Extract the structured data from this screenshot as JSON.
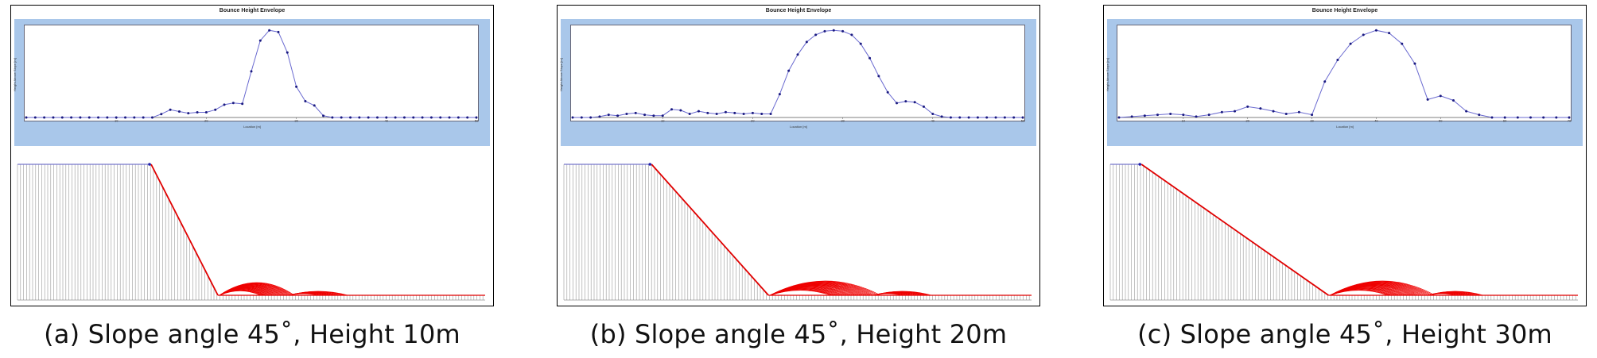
{
  "chart_data": [
    {
      "type": "line",
      "title": "Bounce Height Envelope",
      "xlabel": "Location [m]",
      "ylabel": "Height Above Slope [m]",
      "xlim": [
        0,
        50
      ],
      "x_ticks": [
        "10",
        "20",
        "30",
        "40",
        "50"
      ],
      "x": [
        0,
        1,
        2,
        3,
        4,
        5,
        6,
        7,
        8,
        9,
        10,
        11,
        12,
        13,
        14,
        15,
        16,
        17,
        18,
        19,
        20,
        21,
        22,
        23,
        24,
        25,
        26,
        27,
        28,
        29,
        30,
        31,
        32,
        33,
        34,
        35,
        36,
        37,
        38,
        39,
        40,
        41,
        42,
        43,
        44,
        45,
        46,
        47,
        48,
        49,
        50
      ],
      "series": [
        {
          "values": [
            0,
            0,
            0,
            0,
            0,
            0,
            0,
            0,
            0,
            0,
            0,
            0,
            0,
            0,
            0,
            0.2,
            0.45,
            0.35,
            0.25,
            0.3,
            0.3,
            0.45,
            0.75,
            0.85,
            0.8,
            2.7,
            4.5,
            5.1,
            5.0,
            3.8,
            1.8,
            0.95,
            0.7,
            0.1,
            0,
            0,
            0,
            0,
            0,
            0,
            0,
            0,
            0,
            0,
            0,
            0,
            0,
            0,
            0,
            0,
            0
          ]
        }
      ],
      "color": "#4444aa",
      "caption": "(a) Slope angle 45˚, Height 10m",
      "terrain": {
        "bench_length": 20,
        "slope_height": 10,
        "runout_length": 40
      }
    },
    {
      "type": "line",
      "title": "Bounce Height Envelope",
      "xlabel": "Location [m]",
      "ylabel": "Height Above Slope [m]",
      "xlim": [
        0,
        50
      ],
      "x_ticks": [
        "10",
        "20",
        "30",
        "40",
        "50"
      ],
      "x": [
        0,
        1,
        2,
        3,
        4,
        5,
        6,
        7,
        8,
        9,
        10,
        11,
        12,
        13,
        14,
        15,
        16,
        17,
        18,
        19,
        20,
        21,
        22,
        23,
        24,
        25,
        26,
        27,
        28,
        29,
        30,
        31,
        32,
        33,
        34,
        35,
        36,
        37,
        38,
        39,
        40,
        41,
        42,
        43,
        44,
        45,
        46,
        47,
        48,
        49,
        50
      ],
      "series": [
        {
          "values": [
            0,
            0,
            0,
            0.05,
            0.15,
            0.1,
            0.2,
            0.25,
            0.15,
            0.1,
            0.1,
            0.45,
            0.4,
            0.2,
            0.35,
            0.25,
            0.2,
            0.3,
            0.25,
            0.2,
            0.25,
            0.2,
            0.2,
            1.3,
            2.6,
            3.5,
            4.2,
            4.6,
            4.8,
            4.85,
            4.8,
            4.6,
            4.1,
            3.3,
            2.3,
            1.4,
            0.8,
            0.9,
            0.85,
            0.6,
            0.2,
            0.05,
            0,
            0,
            0,
            0,
            0,
            0,
            0,
            0,
            0
          ]
        }
      ],
      "color": "#4444aa",
      "caption": "(b) Slope angle 45˚, Height 20m",
      "terrain": {
        "bench_length": 15,
        "slope_height": 20,
        "runout_length": 45
      }
    },
    {
      "type": "line",
      "title": "Bounce Height Envelope",
      "xlabel": "Location [m]",
      "ylabel": "Height Above Slope [m]",
      "xlim": [
        0,
        70
      ],
      "x_ticks": [
        "10",
        "20",
        "30",
        "40",
        "50",
        "60",
        "70"
      ],
      "x": [
        0,
        2,
        4,
        6,
        8,
        10,
        12,
        14,
        16,
        18,
        20,
        22,
        24,
        26,
        28,
        30,
        32,
        34,
        36,
        38,
        40,
        42,
        44,
        46,
        48,
        50,
        52,
        54,
        56,
        58,
        60,
        62,
        64,
        66,
        68,
        70
      ],
      "series": [
        {
          "values": [
            0,
            0.05,
            0.1,
            0.15,
            0.2,
            0.15,
            0.05,
            0.15,
            0.3,
            0.35,
            0.6,
            0.5,
            0.35,
            0.2,
            0.3,
            0.15,
            2.0,
            3.2,
            4.1,
            4.6,
            4.85,
            4.7,
            4.1,
            3.0,
            1.0,
            1.2,
            0.95,
            0.35,
            0.15,
            0,
            0,
            0,
            0,
            0,
            0,
            0
          ]
        }
      ],
      "color": "#4444aa",
      "caption": "(c) Slope angle 45˚, Height 30m",
      "terrain": {
        "bench_length": 5,
        "slope_height": 30,
        "runout_length": 40
      }
    }
  ]
}
